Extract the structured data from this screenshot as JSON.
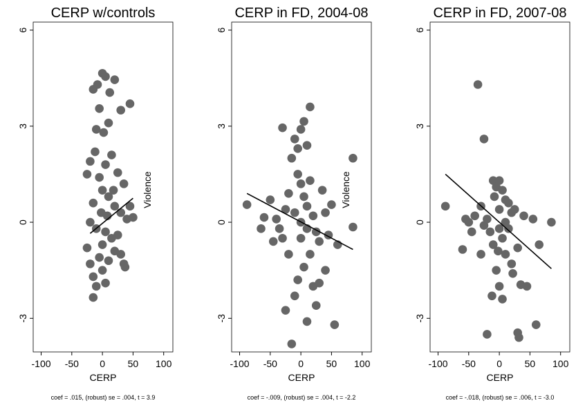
{
  "chart_data": [
    {
      "type": "scatter",
      "title": "CERP w/controls",
      "x_label": "CERP",
      "annotation": "Violence",
      "note": "coef = .015, (robust) se = .004, t = 3.9",
      "color": "#666666",
      "xlim": [
        -113,
        115
      ],
      "ylim": [
        -4.05,
        6.25
      ],
      "xticks": [
        -100,
        -50,
        0,
        50,
        100
      ],
      "yticks": [
        -3,
        0,
        3,
        6
      ],
      "x": [
        0,
        5,
        -15,
        -8,
        12,
        20,
        30,
        45,
        -5,
        10,
        -10,
        2,
        -20,
        -25,
        15,
        25,
        35,
        5,
        -5,
        0,
        10,
        -15,
        20,
        30,
        40,
        50,
        -20,
        -10,
        5,
        15,
        -25,
        0,
        25,
        -5,
        10,
        -20,
        35,
        37,
        -15,
        0,
        -10,
        -15,
        5,
        20,
        45,
        -2,
        8,
        -12,
        18,
        30
      ],
      "values": [
        4.65,
        4.55,
        4.15,
        4.3,
        4.05,
        4.45,
        3.5,
        3.7,
        3.55,
        3.1,
        2.9,
        2.8,
        1.9,
        1.5,
        2.1,
        1.55,
        1.2,
        1.8,
        1.4,
        1,
        0.8,
        0.6,
        0.5,
        0.3,
        0.1,
        0.15,
        0,
        -0.2,
        -0.3,
        -0.5,
        -0.8,
        -0.7,
        -0.4,
        -1.1,
        -1.2,
        -1.3,
        -1.3,
        -1.4,
        -1.7,
        -1.5,
        -2.0,
        -2.35,
        -1.9,
        -0.9,
        0.5,
        0.3,
        0.2,
        2.2,
        1.0,
        -1.0
      ],
      "fit_line": {
        "x": [
          -20,
          50
        ],
        "values": [
          -0.35,
          0.75
        ]
      }
    },
    {
      "type": "scatter",
      "title": "CERP in FD, 2004-08",
      "x_label": "CERP",
      "annotation": "Violence",
      "note": "coef = -.009, (robust) se = .004, t = -2.2",
      "color": "#666666",
      "xlim": [
        -113,
        115
      ],
      "ylim": [
        -4.05,
        6.25
      ],
      "xticks": [
        -100,
        -50,
        0,
        50,
        100
      ],
      "yticks": [
        -3,
        0,
        3,
        6
      ],
      "x": [
        -88,
        -60,
        -50,
        -45,
        -30,
        -35,
        -25,
        -20,
        -15,
        -10,
        -5,
        0,
        5,
        15,
        10,
        -5,
        0,
        5,
        10,
        -10,
        20,
        25,
        30,
        -25,
        -10,
        -15,
        10,
        25,
        30,
        40,
        55,
        50,
        60,
        85,
        85,
        40,
        15,
        0,
        -5,
        5,
        20,
        -20,
        35,
        -40,
        0,
        10,
        -30,
        45,
        -65,
        15
      ],
      "values": [
        0.55,
        0.15,
        0.7,
        -0.6,
        2.95,
        -0.2,
        0.4,
        -1.0,
        2.0,
        2.6,
        2.3,
        2.9,
        3.15,
        3.6,
        2.4,
        1.5,
        1.2,
        0.8,
        0.5,
        0.3,
        0.2,
        -0.3,
        -0.6,
        -2.75,
        -2.3,
        -3.8,
        -3.1,
        -2.6,
        -1.9,
        -1.5,
        -3.2,
        0.55,
        -0.7,
        2.0,
        -0.15,
        0.3,
        -1.0,
        -0.5,
        -1.8,
        -1.4,
        -2.0,
        0.9,
        1.0,
        0.1,
        0,
        -0.2,
        -0.5,
        -0.4,
        -0.2,
        1.3
      ],
      "fit_line": {
        "x": [
          -88,
          85
        ],
        "values": [
          0.9,
          -0.85
        ]
      }
    },
    {
      "type": "scatter",
      "title": "CERP in FD, 2007-08",
      "x_label": "CERP",
      "note": "coef = -.018, (robust) se = .006, t = -3.0",
      "color": "#666666",
      "xlim": [
        -113,
        115
      ],
      "ylim": [
        -4.05,
        6.25
      ],
      "xticks": [
        -100,
        -50,
        0,
        50,
        100
      ],
      "yticks": [
        -3,
        0,
        3,
        6
      ],
      "x": [
        -88,
        -35,
        -25,
        -60,
        -55,
        -45,
        -40,
        -30,
        -20,
        -10,
        -5,
        0,
        5,
        10,
        15,
        20,
        -15,
        -10,
        0,
        5,
        10,
        -5,
        -12,
        0,
        5,
        -20,
        30,
        32,
        35,
        45,
        60,
        55,
        65,
        85,
        30,
        20,
        40,
        -25,
        25,
        15,
        -30,
        -50,
        10,
        0,
        -8,
        22,
        -2
      ],
      "values": [
        0.5,
        4.3,
        2.6,
        -0.85,
        0.1,
        -0.3,
        0.2,
        0.5,
        0.1,
        1.3,
        1.1,
        1.3,
        1.0,
        0.7,
        0.6,
        0.3,
        -0.3,
        -0.7,
        -0.2,
        -0.5,
        -1.0,
        -1.5,
        -2.3,
        -2.0,
        -2.4,
        -3.5,
        -3.45,
        -3.6,
        -1.95,
        -2.0,
        -3.2,
        0.1,
        -0.7,
        0.0,
        -0.8,
        -1.3,
        0.2,
        -0.1,
        0.4,
        -0.2,
        -1.0,
        0.0,
        0.0,
        0.4,
        0.8,
        -1.6,
        -0.9
      ],
      "fit_line": {
        "x": [
          -88,
          85
        ],
        "values": [
          1.5,
          -1.45
        ]
      }
    }
  ]
}
